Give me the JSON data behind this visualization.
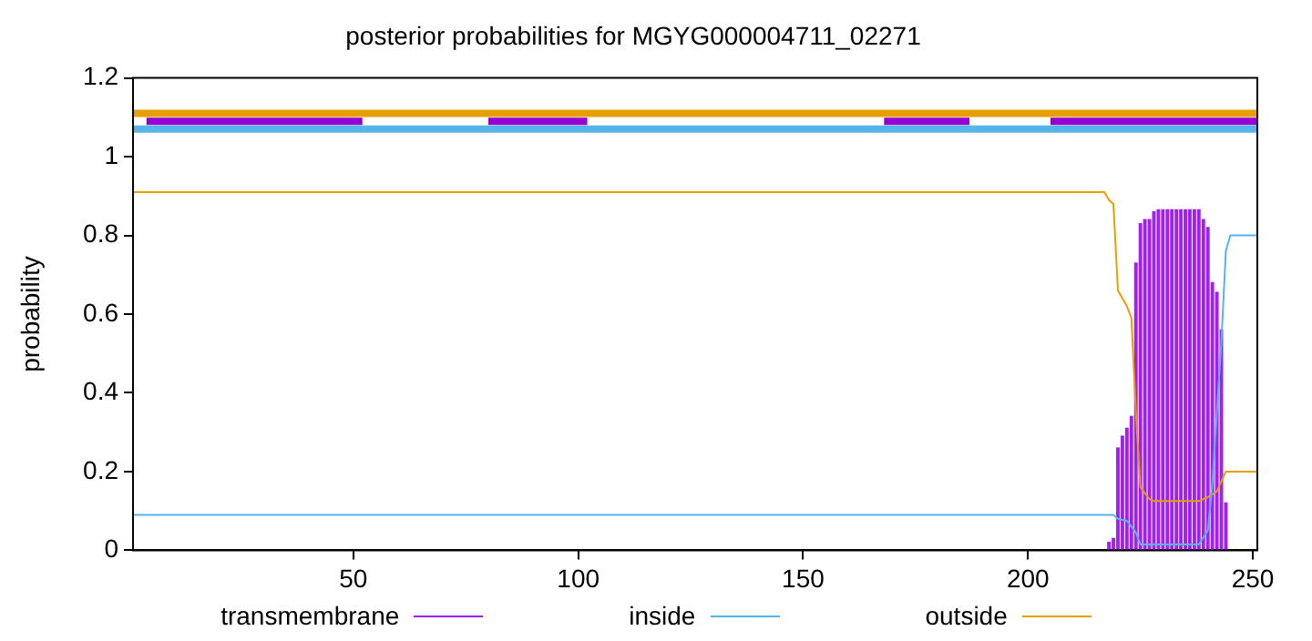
{
  "chart_data": {
    "type": "line",
    "title": "posterior probabilities for MGYG000004711_02271",
    "ylabel": "probability",
    "xlim": [
      1,
      251
    ],
    "xticks": [
      50,
      100,
      150,
      200,
      250
    ],
    "ylim": [
      0,
      1.2
    ],
    "yticks": [
      0,
      0.2,
      0.4,
      0.6,
      0.8,
      1,
      1.2
    ],
    "grid": false,
    "legend": "bottom",
    "marker": "none",
    "line_style": "solid",
    "series": [
      {
        "name": "transmembrane",
        "type": "bar",
        "color": "#a020f0",
        "x": [
          218,
          219,
          220,
          221,
          222,
          223,
          224,
          225,
          226,
          227,
          228,
          229,
          230,
          231,
          232,
          233,
          234,
          235,
          236,
          237,
          238,
          239,
          240,
          241,
          242,
          243,
          244
        ],
        "values": [
          0.02,
          0.03,
          0.26,
          0.29,
          0.31,
          0.34,
          0.73,
          0.83,
          0.84,
          0.84,
          0.86,
          0.865,
          0.865,
          0.865,
          0.865,
          0.865,
          0.865,
          0.865,
          0.865,
          0.865,
          0.865,
          0.84,
          0.82,
          0.68,
          0.655,
          0.56,
          0.12
        ]
      },
      {
        "name": "inside",
        "color": "#56b4e9",
        "x": [
          1,
          219,
          220,
          222,
          224,
          225,
          238,
          240,
          241,
          243,
          244,
          245,
          251
        ],
        "values": [
          0.09,
          0.09,
          0.08,
          0.075,
          0.045,
          0.015,
          0.015,
          0.05,
          0.17,
          0.53,
          0.76,
          0.8,
          0.8
        ]
      },
      {
        "name": "outside",
        "color": "#e69f00",
        "x": [
          1,
          217,
          218,
          219,
          220,
          222,
          223,
          224,
          225,
          227,
          228,
          238,
          240,
          242,
          244,
          251
        ],
        "values": [
          0.91,
          0.91,
          0.89,
          0.88,
          0.66,
          0.62,
          0.59,
          0.35,
          0.16,
          0.13,
          0.125,
          0.125,
          0.135,
          0.15,
          0.2,
          0.2
        ]
      },
      {
        "color": "#e69f00",
        "x": [
          1,
          251
        ],
        "values": [
          1.11,
          1.11
        ]
      },
      {
        "color": "#9400d3",
        "x": [
          4,
          52
        ],
        "values": [
          1.09,
          1.09
        ]
      },
      {
        "color": "#9400d3",
        "x": [
          80,
          102
        ],
        "values": [
          1.09,
          1.09
        ]
      },
      {
        "color": "#9400d3",
        "x": [
          168,
          187
        ],
        "values": [
          1.09,
          1.09
        ]
      },
      {
        "color": "#9400d3",
        "x": [
          205,
          251
        ],
        "values": [
          1.09,
          1.09
        ]
      },
      {
        "color": "#56b4e9",
        "x": [
          1,
          251
        ],
        "values": [
          1.07,
          1.07
        ]
      }
    ]
  }
}
